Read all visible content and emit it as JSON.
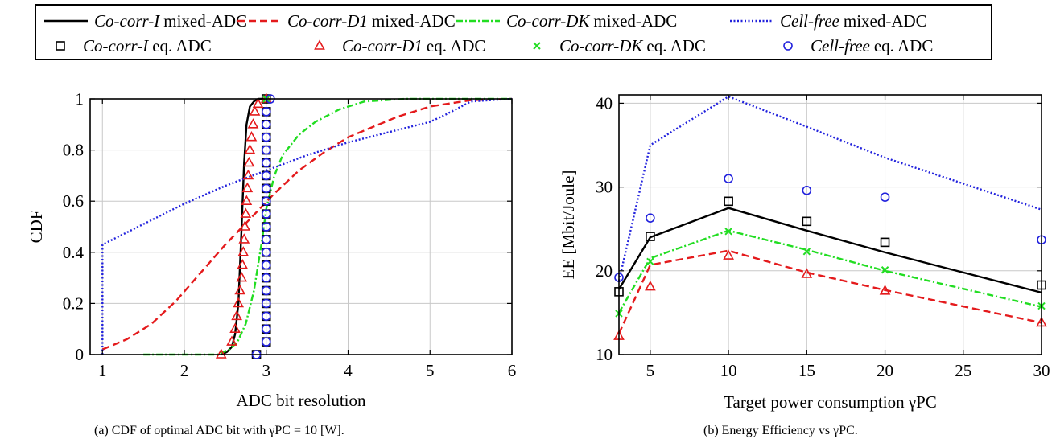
{
  "legend": {
    "entries": [
      {
        "name": "Co-corr-I",
        "suffix": "mixed-ADC",
        "color": "#000000",
        "style": "solid",
        "marker": "none"
      },
      {
        "name": "Co-corr-D1",
        "suffix": "mixed-ADC",
        "color": "#e41a1c",
        "style": "dashed",
        "marker": "none"
      },
      {
        "name": "Co-corr-DK",
        "suffix": "mixed-ADC",
        "color": "#22dd22",
        "style": "dashdot",
        "marker": "none"
      },
      {
        "name": "Cell-free",
        "suffix": "mixed-ADC",
        "color": "#2222dd",
        "style": "dotted",
        "marker": "none"
      },
      {
        "name": "Co-corr-I",
        "suffix": "eq. ADC",
        "color": "#000000",
        "style": "none",
        "marker": "square"
      },
      {
        "name": "Co-corr-D1",
        "suffix": "eq. ADC",
        "color": "#e41a1c",
        "style": "none",
        "marker": "triangle"
      },
      {
        "name": "Co-corr-DK",
        "suffix": "eq. ADC",
        "color": "#22dd22",
        "style": "none",
        "marker": "x"
      },
      {
        "name": "Cell-free",
        "suffix": "eq. ADC",
        "color": "#2222dd",
        "style": "none",
        "marker": "circle"
      }
    ]
  },
  "captions": {
    "a": "(a) CDF of optimal ADC bit with γPC = 10 [W].",
    "b": "(b) Energy Efficiency vs γPC."
  },
  "chart_data": [
    {
      "type": "line",
      "xlabel": "ADC bit resolution",
      "ylabel": "CDF",
      "xlim": [
        0.85,
        6
      ],
      "ylim": [
        0,
        1
      ],
      "xticks": [
        1,
        2,
        3,
        4,
        5,
        6
      ],
      "yticks": [
        0,
        0.2,
        0.4,
        0.6,
        0.8,
        1
      ],
      "ytick_labels": [
        "0",
        "0.2",
        "0.4",
        "0.6",
        "0.8",
        "1"
      ],
      "grid": true,
      "series": [
        {
          "name": "Co-corr-I mixed-ADC",
          "style": "solid",
          "color": "#000000",
          "x": [
            2.45,
            2.52,
            2.58,
            2.62,
            2.66,
            2.7,
            2.73,
            2.76,
            2.8,
            2.85,
            2.9,
            2.95,
            3.0
          ],
          "y": [
            0,
            0.01,
            0.03,
            0.08,
            0.2,
            0.5,
            0.75,
            0.9,
            0.97,
            0.99,
            1,
            1,
            1
          ]
        },
        {
          "name": "Co-corr-D1 mixed-ADC",
          "style": "dashed",
          "color": "#e41a1c",
          "x": [
            1.0,
            1.3,
            1.6,
            1.9,
            2.2,
            2.5,
            2.8,
            3.1,
            3.4,
            3.7,
            4.0,
            4.3,
            4.6,
            5.0,
            5.5,
            6.0
          ],
          "y": [
            0.02,
            0.06,
            0.12,
            0.21,
            0.32,
            0.43,
            0.53,
            0.63,
            0.72,
            0.79,
            0.85,
            0.89,
            0.93,
            0.97,
            0.995,
            1
          ]
        },
        {
          "name": "Co-corr-DK mixed-ADC",
          "style": "dashdot",
          "color": "#22dd22",
          "x": [
            1.5,
            2.4,
            2.55,
            2.65,
            2.75,
            2.85,
            2.95,
            3.0,
            3.1,
            3.2,
            3.4,
            3.6,
            3.9,
            4.2,
            4.7,
            6.0
          ],
          "y": [
            0,
            0,
            0.02,
            0.05,
            0.12,
            0.25,
            0.45,
            0.57,
            0.7,
            0.78,
            0.86,
            0.91,
            0.96,
            0.99,
            1,
            1
          ]
        },
        {
          "name": "Cell-free mixed-ADC",
          "style": "dotted",
          "color": "#2222dd",
          "x": [
            1.0,
            1.0,
            1.5,
            2.0,
            2.5,
            3.0,
            3.5,
            4.0,
            4.5,
            5.0,
            5.2,
            5.5,
            6.0
          ],
          "y": [
            0,
            0.43,
            0.51,
            0.59,
            0.66,
            0.72,
            0.78,
            0.83,
            0.87,
            0.91,
            0.94,
            0.99,
            1
          ]
        },
        {
          "name": "Co-corr-I eq. ADC",
          "style": "marker",
          "marker": "square",
          "color": "#000000",
          "x": [
            2.88,
            3.0,
            3.0,
            3.0,
            3.0,
            3.0,
            3.0,
            3.0,
            3.0,
            3.0,
            3.0,
            3.0,
            3.0,
            3.0,
            3.0,
            3.0,
            3.0,
            3.0,
            3.0,
            3.0,
            3.0
          ],
          "y": [
            0,
            0.05,
            0.1,
            0.15,
            0.2,
            0.25,
            0.3,
            0.35,
            0.4,
            0.45,
            0.5,
            0.55,
            0.6,
            0.65,
            0.7,
            0.75,
            0.8,
            0.85,
            0.9,
            0.95,
            1
          ]
        },
        {
          "name": "Co-corr-D1 eq. ADC",
          "style": "marker",
          "marker": "triangle",
          "color": "#e41a1c",
          "x": [
            2.45,
            2.58,
            2.62,
            2.64,
            2.66,
            2.68,
            2.7,
            2.71,
            2.72,
            2.73,
            2.74,
            2.75,
            2.76,
            2.77,
            2.78,
            2.79,
            2.8,
            2.82,
            2.84,
            2.86,
            2.9,
            3.0
          ],
          "y": [
            0,
            0.05,
            0.1,
            0.15,
            0.2,
            0.25,
            0.3,
            0.35,
            0.4,
            0.45,
            0.5,
            0.55,
            0.6,
            0.65,
            0.7,
            0.75,
            0.8,
            0.85,
            0.9,
            0.95,
            0.98,
            1
          ]
        },
        {
          "name": "Co-corr-DK eq. ADC",
          "style": "marker",
          "marker": "x",
          "color": "#22dd22",
          "x": [
            3.0
          ],
          "y": [
            1
          ]
        },
        {
          "name": "Cell-free eq. ADC",
          "style": "marker",
          "marker": "circle",
          "color": "#2222dd",
          "x": [
            2.88,
            3.0,
            3.0,
            3.0,
            3.0,
            3.0,
            3.0,
            3.0,
            3.0,
            3.0,
            3.0,
            3.0,
            3.0,
            3.0,
            3.0,
            3.0,
            3.0,
            3.0,
            3.0,
            3.0,
            3.05
          ],
          "y": [
            0,
            0.05,
            0.1,
            0.15,
            0.2,
            0.25,
            0.3,
            0.35,
            0.4,
            0.45,
            0.5,
            0.55,
            0.6,
            0.65,
            0.7,
            0.75,
            0.8,
            0.85,
            0.9,
            0.95,
            1
          ]
        }
      ]
    },
    {
      "type": "line",
      "xlabel": "Target power consumption γPC",
      "ylabel": "EE [Mbit/Joule]",
      "xlim": [
        3,
        30
      ],
      "ylim": [
        10,
        41
      ],
      "xticks": [
        5,
        10,
        15,
        20,
        25,
        30
      ],
      "yticks": [
        10,
        20,
        30,
        40
      ],
      "grid": true,
      "series": [
        {
          "name": "Co-corr-I mixed-ADC",
          "style": "solid",
          "color": "#000000",
          "x": [
            3,
            5,
            10,
            15,
            20,
            30
          ],
          "y": [
            17.8,
            24.0,
            27.5,
            24.8,
            22.2,
            17.4
          ]
        },
        {
          "name": "Co-corr-D1 mixed-ADC",
          "style": "dashed",
          "color": "#e41a1c",
          "x": [
            3,
            5,
            10,
            15,
            20,
            30
          ],
          "y": [
            12.5,
            20.7,
            22.4,
            19.8,
            17.7,
            13.8
          ]
        },
        {
          "name": "Co-corr-DK mixed-ADC",
          "style": "dashdot",
          "color": "#22dd22",
          "x": [
            3,
            5,
            10,
            15,
            20,
            30
          ],
          "y": [
            15.0,
            21.5,
            24.8,
            22.5,
            20.0,
            15.7
          ]
        },
        {
          "name": "Cell-free mixed-ADC",
          "style": "dotted",
          "color": "#2222dd",
          "x": [
            3,
            5,
            10,
            15,
            20,
            30
          ],
          "y": [
            18.8,
            35.0,
            40.8,
            37.2,
            33.5,
            27.3
          ]
        },
        {
          "name": "Co-corr-I eq. ADC",
          "style": "marker",
          "marker": "square",
          "color": "#000000",
          "x": [
            3,
            5,
            10,
            15,
            20,
            30
          ],
          "y": [
            17.5,
            24.1,
            28.3,
            25.9,
            23.4,
            18.3
          ]
        },
        {
          "name": "Co-corr-D1 eq. ADC",
          "style": "marker",
          "marker": "triangle",
          "color": "#e41a1c",
          "x": [
            3,
            5,
            10,
            15,
            20,
            30
          ],
          "y": [
            12.2,
            18.1,
            21.8,
            19.6,
            17.6,
            13.8
          ]
        },
        {
          "name": "Co-corr-DK eq. ADC",
          "style": "marker",
          "marker": "x",
          "color": "#22dd22",
          "x": [
            3,
            5,
            10,
            15,
            20,
            30
          ],
          "y": [
            14.9,
            21.1,
            24.7,
            22.3,
            20.1,
            15.8
          ]
        },
        {
          "name": "Cell-free eq. ADC",
          "style": "marker",
          "marker": "circle",
          "color": "#2222dd",
          "x": [
            3,
            5,
            10,
            15,
            20,
            30
          ],
          "y": [
            19.2,
            26.3,
            31.0,
            29.6,
            28.8,
            23.7
          ]
        }
      ]
    }
  ]
}
